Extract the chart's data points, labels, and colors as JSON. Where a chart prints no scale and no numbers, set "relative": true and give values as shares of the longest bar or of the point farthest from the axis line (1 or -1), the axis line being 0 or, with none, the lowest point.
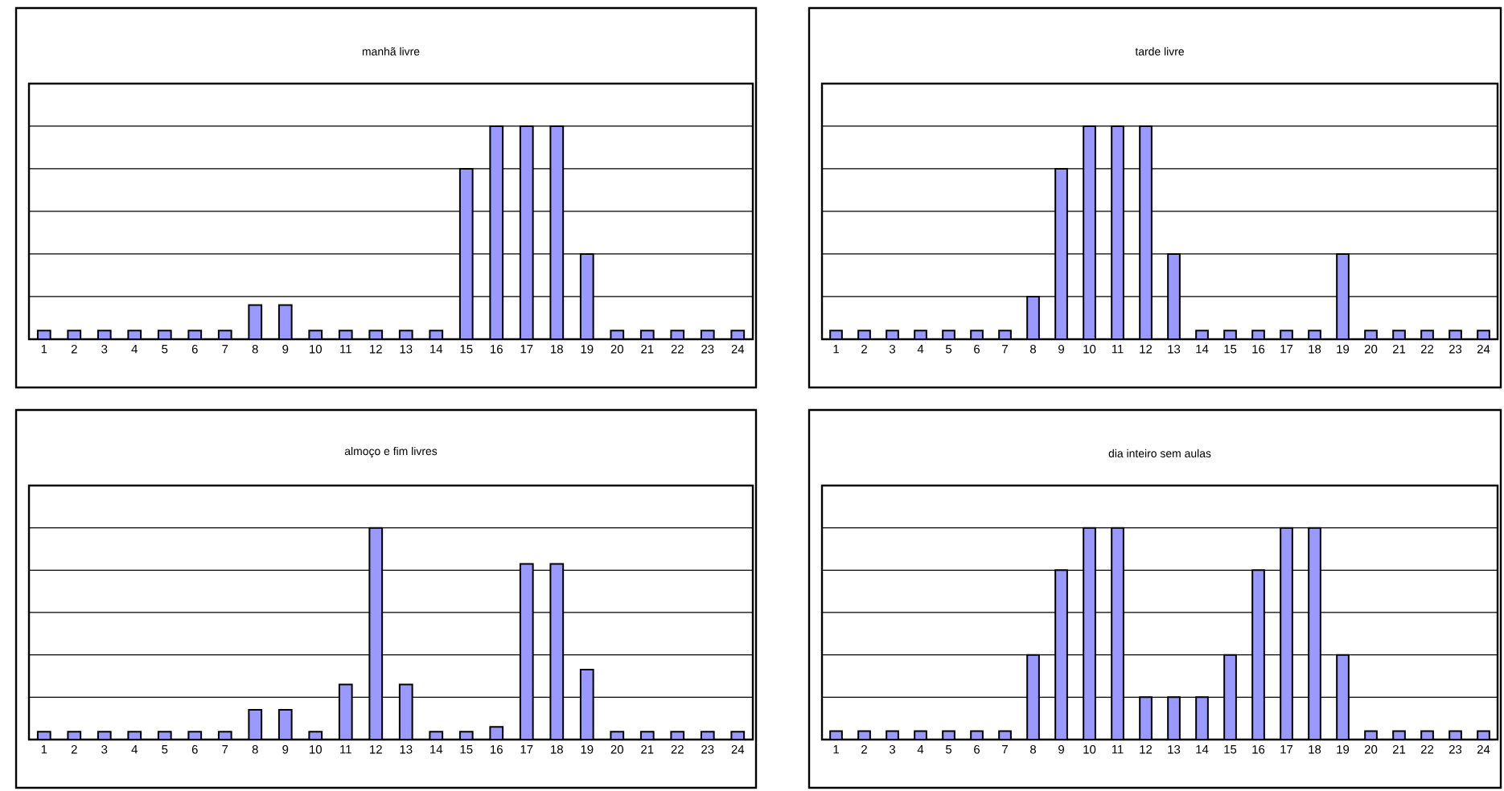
{
  "chart_data": [
    {
      "type": "bar",
      "title": "manhã livre",
      "categories": [
        "1",
        "2",
        "3",
        "4",
        "5",
        "6",
        "7",
        "8",
        "9",
        "10",
        "11",
        "12",
        "13",
        "14",
        "15",
        "16",
        "17",
        "18",
        "19",
        "20",
        "21",
        "22",
        "23",
        "24"
      ],
      "values": [
        0.04,
        0.04,
        0.04,
        0.04,
        0.04,
        0.04,
        0.04,
        0.16,
        0.16,
        0.04,
        0.04,
        0.04,
        0.04,
        0.04,
        0.8,
        1,
        1,
        1,
        0.4,
        0.04,
        0.04,
        0.04,
        0.04,
        0.04
      ],
      "color": "#9999ff",
      "relative": true,
      "grid": "y"
    },
    {
      "type": "bar",
      "title": "tarde livre",
      "categories": [
        "1",
        "2",
        "3",
        "4",
        "5",
        "6",
        "7",
        "8",
        "9",
        "10",
        "11",
        "12",
        "13",
        "14",
        "15",
        "16",
        "17",
        "18",
        "19",
        "20",
        "21",
        "22",
        "23",
        "24"
      ],
      "values": [
        0.04,
        0.04,
        0.04,
        0.04,
        0.04,
        0.04,
        0.04,
        0.2,
        0.8,
        1,
        1,
        1,
        0.4,
        0.04,
        0.04,
        0.04,
        0.04,
        0.04,
        0.4,
        0.04,
        0.04,
        0.04,
        0.04,
        0.04
      ],
      "color": "#9999ff",
      "relative": true,
      "grid": "y"
    },
    {
      "type": "bar",
      "title": "almoço e fim livres",
      "categories": [
        "1",
        "2",
        "3",
        "4",
        "5",
        "6",
        "7",
        "8",
        "9",
        "10",
        "11",
        "12",
        "13",
        "14",
        "15",
        "16",
        "17",
        "18",
        "19",
        "20",
        "21",
        "22",
        "23",
        "24"
      ],
      "values": [
        0.037,
        0.037,
        0.037,
        0.037,
        0.037,
        0.037,
        0.037,
        0.14,
        0.14,
        0.037,
        0.26,
        1,
        0.26,
        0.037,
        0.037,
        0.06,
        0.83,
        0.83,
        0.33,
        0.037,
        0.037,
        0.037,
        0.037,
        0.037
      ],
      "color": "#9999ff",
      "relative": true,
      "grid": "y"
    },
    {
      "type": "bar",
      "title": "dia inteiro sem aulas",
      "categories": [
        "1",
        "2",
        "3",
        "4",
        "5",
        "6",
        "7",
        "8",
        "9",
        "10",
        "11",
        "12",
        "13",
        "14",
        "15",
        "16",
        "17",
        "18",
        "19",
        "20",
        "21",
        "22",
        "23",
        "24"
      ],
      "values": [
        0.04,
        0.04,
        0.04,
        0.04,
        0.04,
        0.04,
        0.04,
        0.4,
        0.8,
        1,
        1,
        0.2,
        0.2,
        0.2,
        0.4,
        0.8,
        1,
        1,
        0.4,
        0.04,
        0.04,
        0.04,
        0.04,
        0.04
      ],
      "color": "#9999ff",
      "relative": true,
      "grid": "y"
    }
  ]
}
